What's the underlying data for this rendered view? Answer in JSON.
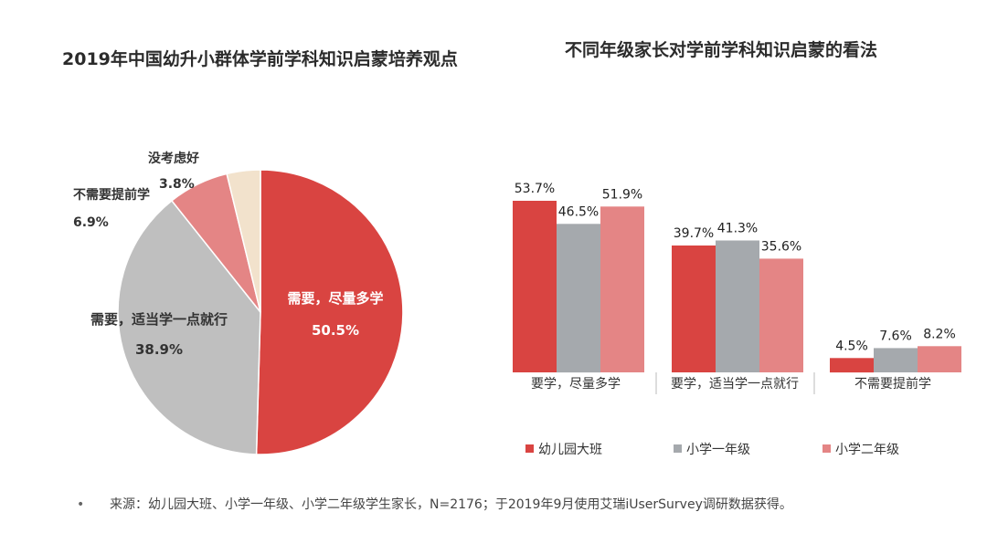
{
  "pie_title": "2019年中国幼升小群体学前学科知识启蒙培养观点",
  "bar_title": "不同年级家长对学前学科知识启蒙的看法",
  "footnote": "来源：幼儿园大班、小学一年级、小学二年级学生家长，N=2176；于2019年9月使用艾瑞iUserSurvey调研数据获得。",
  "colors": {
    "red": "#d94441",
    "gray": "#a5a9ad",
    "pink": "#e48585",
    "beige": "#f2e2cc",
    "lightgray": "#bfbfbf"
  },
  "chart_data": [
    {
      "type": "pie",
      "title": "2019年中国幼升小群体学前学科知识启蒙培养观点",
      "slices": [
        {
          "label": "需要，尽量多学",
          "value": 50.5,
          "value_label": "50.5%",
          "color": "#d94441"
        },
        {
          "label": "需要，适当学一点就行",
          "value": 38.9,
          "value_label": "38.9%",
          "color": "#bfbfbf"
        },
        {
          "label": "不需要提前学",
          "value": 6.9,
          "value_label": "6.9%",
          "color": "#e48585"
        },
        {
          "label": "没考虑好",
          "value": 3.8,
          "value_label": "3.8%",
          "color": "#f2e2cc"
        }
      ]
    },
    {
      "type": "bar",
      "title": "不同年级家长对学前学科知识启蒙的看法",
      "categories": [
        "要学，尽量多学",
        "要学，适当学一点就行",
        "不需要提前学"
      ],
      "series": [
        {
          "name": "幼儿园大班",
          "values": [
            53.7,
            39.7,
            4.5
          ],
          "labels": [
            "53.7%",
            "39.7%",
            "4.5%"
          ],
          "color": "#d94441"
        },
        {
          "name": "小学一年级",
          "values": [
            46.5,
            41.3,
            7.6
          ],
          "labels": [
            "46.5%",
            "41.3%",
            "7.6%"
          ],
          "color": "#a5a9ad"
        },
        {
          "name": "小学二年级",
          "values": [
            51.9,
            35.6,
            8.2
          ],
          "labels": [
            "51.9%",
            "35.6%",
            "8.2%"
          ],
          "color": "#e48585"
        }
      ],
      "legend": "bottom"
    }
  ]
}
